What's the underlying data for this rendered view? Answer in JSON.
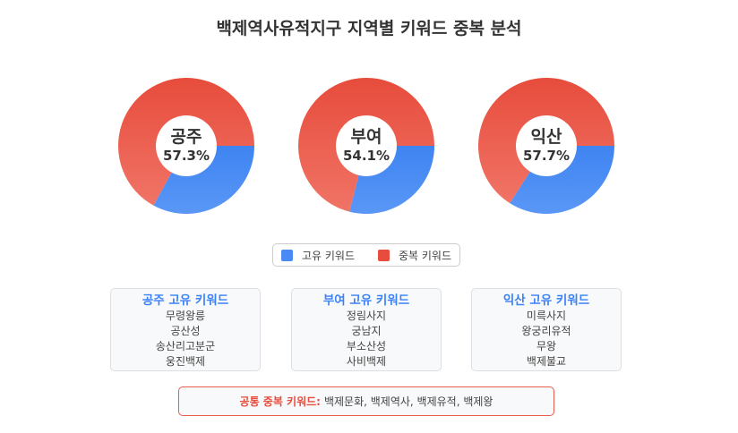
{
  "title": "백제역사유적지구 지역별 키워드 중복 분석",
  "colors": {
    "unique": "#4a8af4",
    "overlap": "#e74c3c",
    "overlap_light": "#f07466"
  },
  "chart_data": {
    "type": "doughnut",
    "title": "백제역사유적지구 지역별 키워드 중복 분석",
    "legend": {
      "position": "bottom",
      "items": [
        "고유 키워드",
        "중복 키워드"
      ]
    },
    "charts": [
      {
        "region": "공주",
        "label": "57.3%",
        "unique_fraction": 0.33,
        "overlap_fraction": 0.67
      },
      {
        "region": "부여",
        "label": "54.1%",
        "unique_fraction": 0.29,
        "overlap_fraction": 0.71
      },
      {
        "region": "익산",
        "label": "57.7%",
        "unique_fraction": 0.34,
        "overlap_fraction": 0.66
      }
    ]
  },
  "boxes": [
    {
      "title": "공주 고유 키워드",
      "items": [
        "무령왕릉",
        "공산성",
        "송산리고분군",
        "웅진백제"
      ]
    },
    {
      "title": "부여 고유 키워드",
      "items": [
        "정림사지",
        "궁남지",
        "부소산성",
        "사비백제"
      ]
    },
    {
      "title": "익산 고유 키워드",
      "items": [
        "미륵사지",
        "왕궁리유적",
        "무왕",
        "백제불교"
      ]
    }
  ],
  "common": {
    "label": "공통 중복 키워드:",
    "value": "백제문화, 백제역사, 백제유적, 백제왕"
  }
}
